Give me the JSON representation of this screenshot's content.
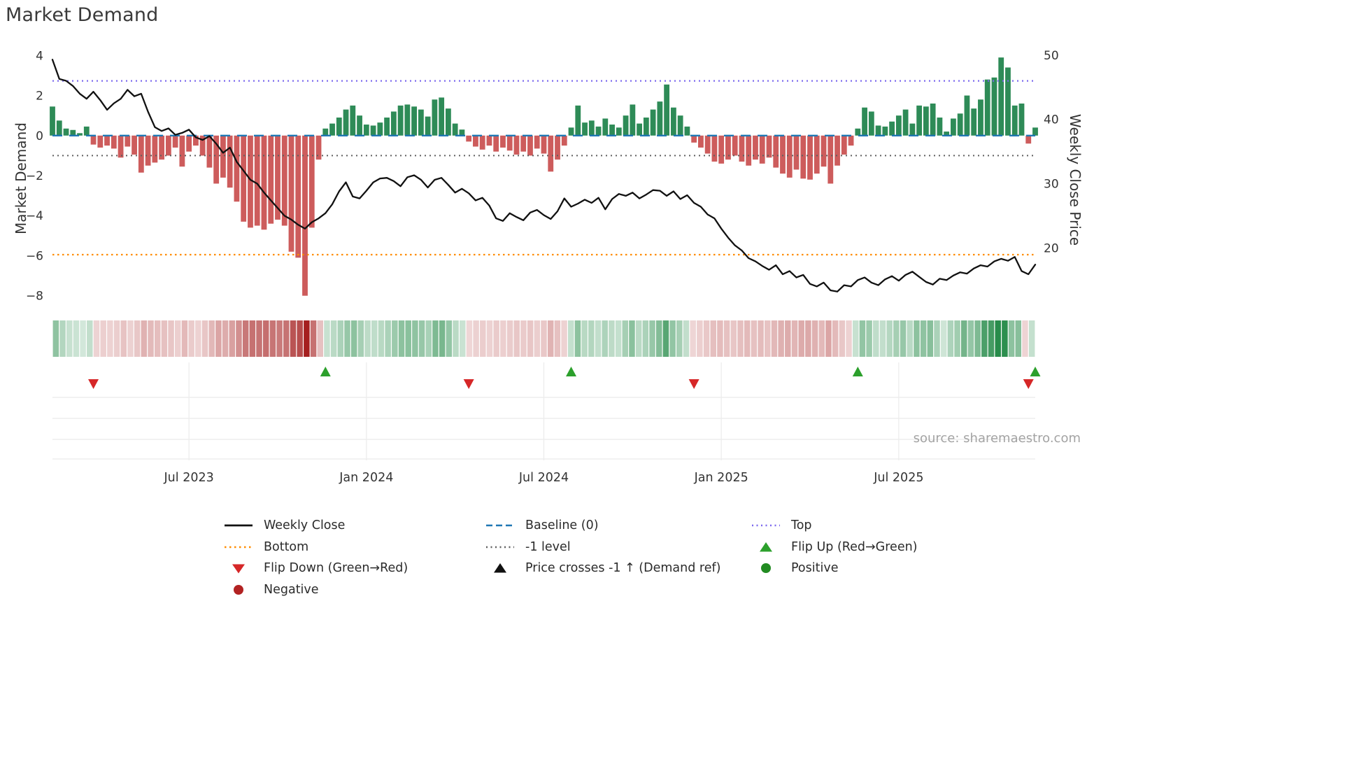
{
  "title": "Market Demand",
  "source": "source: sharemaestro.com",
  "colors": {
    "positive_bar": "#2e8b57",
    "negative_bar": "#cd5c5c",
    "price_line": "#111111",
    "baseline": "#1f77b4",
    "top_line": "#7b68ee",
    "bottom_line": "#ff8c00",
    "minus_one_line": "#5f5f5f",
    "flip_up": "#2ca02c",
    "flip_down": "#d62728",
    "positive_dot": "#228b22",
    "negative_dot": "#b22222",
    "grid": "#ebebeb",
    "tick_text": "#333333"
  },
  "chart_data": {
    "type": "combo",
    "title": "Market Demand",
    "start_date": "2023-02-17",
    "freq_days": 7,
    "x_tick_labels": [
      "Jul 2023",
      "Jan 2024",
      "Jul 2024",
      "Jan 2025",
      "Jul 2025"
    ],
    "x_tick_indices": [
      20,
      46,
      72,
      98,
      124
    ],
    "left_axis": {
      "label": "Market Demand",
      "ticks": [
        4,
        2,
        0,
        -2,
        -4,
        -6,
        -8
      ],
      "range": [
        -8.5,
        4.5
      ]
    },
    "right_axis": {
      "label": "Weekly Close Price",
      "ticks": [
        50,
        40,
        30,
        20
      ],
      "range": [
        11,
        51.5
      ]
    },
    "reference_lines": {
      "baseline": 0,
      "top": 2.73,
      "bottom": -5.95,
      "minus_one": -1
    },
    "flip_up_indices": [
      40,
      76,
      118,
      144
    ],
    "flip_down_indices": [
      6,
      61,
      94,
      143
    ],
    "series": [
      {
        "name": "Market Demand",
        "type": "bar",
        "axis": "left",
        "values": [
          1.45,
          0.75,
          0.35,
          0.28,
          0.12,
          0.45,
          -0.45,
          -0.6,
          -0.5,
          -0.65,
          -1.1,
          -0.55,
          -0.95,
          -1.85,
          -1.5,
          -1.35,
          -1.2,
          -1.0,
          -0.6,
          -1.55,
          -0.8,
          -0.5,
          -1.0,
          -1.6,
          -2.4,
          -2.1,
          -2.6,
          -3.3,
          -4.3,
          -4.6,
          -4.5,
          -4.7,
          -4.4,
          -4.2,
          -4.5,
          -5.8,
          -6.1,
          -8.0,
          -4.6,
          -1.2,
          0.35,
          0.6,
          0.9,
          1.3,
          1.5,
          1.0,
          0.55,
          0.5,
          0.65,
          0.9,
          1.2,
          1.5,
          1.55,
          1.45,
          1.3,
          0.95,
          1.8,
          1.9,
          1.35,
          0.6,
          0.3,
          -0.3,
          -0.55,
          -0.7,
          -0.5,
          -0.8,
          -0.6,
          -0.75,
          -0.95,
          -0.8,
          -1.0,
          -0.65,
          -0.9,
          -1.8,
          -1.2,
          -0.5,
          0.4,
          1.5,
          0.65,
          0.75,
          0.45,
          0.85,
          0.55,
          0.4,
          1.0,
          1.55,
          0.6,
          0.9,
          1.3,
          1.7,
          2.55,
          1.4,
          1.0,
          0.45,
          -0.35,
          -0.6,
          -0.9,
          -1.3,
          -1.4,
          -1.2,
          -1.0,
          -1.3,
          -1.5,
          -1.2,
          -1.4,
          -1.1,
          -1.6,
          -1.9,
          -2.1,
          -1.7,
          -2.15,
          -2.2,
          -1.9,
          -1.55,
          -2.4,
          -1.5,
          -0.95,
          -0.5,
          0.35,
          1.4,
          1.2,
          0.5,
          0.45,
          0.7,
          1.0,
          1.3,
          0.6,
          1.5,
          1.45,
          1.6,
          0.9,
          0.2,
          0.85,
          1.1,
          2.0,
          1.35,
          1.8,
          2.8,
          2.9,
          3.9,
          3.4,
          1.5,
          1.6,
          -0.4,
          0.4
        ]
      },
      {
        "name": "Weekly Close",
        "type": "line",
        "axis": "right",
        "values": [
          49.3,
          46.3,
          46.0,
          45.2,
          44.0,
          43.2,
          44.3,
          43.0,
          41.5,
          42.5,
          43.2,
          44.6,
          43.6,
          44.0,
          41.2,
          38.8,
          38.2,
          38.6,
          37.6,
          37.9,
          38.4,
          37.2,
          36.8,
          37.4,
          36.2,
          34.8,
          35.6,
          33.4,
          32.0,
          30.6,
          30.0,
          28.6,
          27.4,
          26.2,
          25.0,
          24.4,
          23.6,
          23.0,
          24.0,
          24.6,
          25.4,
          26.8,
          28.8,
          30.2,
          28.0,
          27.7,
          28.9,
          30.2,
          30.8,
          30.9,
          30.4,
          29.6,
          31.0,
          31.3,
          30.6,
          29.4,
          30.6,
          30.9,
          29.8,
          28.6,
          29.2,
          28.5,
          27.4,
          27.8,
          26.6,
          24.6,
          24.2,
          25.4,
          24.8,
          24.3,
          25.5,
          25.9,
          25.1,
          24.5,
          25.7,
          27.7,
          26.4,
          26.9,
          27.5,
          27.0,
          27.8,
          26.0,
          27.6,
          28.4,
          28.1,
          28.6,
          27.7,
          28.3,
          29.0,
          28.9,
          28.1,
          28.8,
          27.6,
          28.2,
          27.0,
          26.4,
          25.2,
          24.6,
          23.0,
          21.6,
          20.4,
          19.6,
          18.4,
          17.9,
          17.2,
          16.6,
          17.3,
          15.9,
          16.4,
          15.4,
          15.8,
          14.4,
          14.0,
          14.6,
          13.4,
          13.2,
          14.2,
          14.0,
          15.0,
          15.4,
          14.6,
          14.2,
          15.1,
          15.6,
          14.9,
          15.8,
          16.3,
          15.5,
          14.7,
          14.3,
          15.2,
          15.0,
          15.7,
          16.2,
          16.0,
          16.8,
          17.3,
          17.1,
          17.9,
          18.3,
          18.0,
          18.6,
          16.4,
          15.9,
          17.4
        ]
      }
    ]
  },
  "legend": {
    "columns": [
      {
        "items": [
          {
            "label": "Weekly Close",
            "marker": "line-black"
          },
          {
            "label": "Bottom",
            "marker": "dotted-orange"
          },
          {
            "label": "Flip Down (Green→Red)",
            "marker": "tri-down-red"
          },
          {
            "label": "Negative",
            "marker": "circle-darkred"
          }
        ]
      },
      {
        "items": [
          {
            "label": "Baseline (0)",
            "marker": "dash-blue"
          },
          {
            "label": "-1 level",
            "marker": "dotted-gray"
          },
          {
            "label": "Price crosses -1 ↑ (Demand ref)",
            "marker": "tri-up-black"
          }
        ]
      },
      {
        "items": [
          {
            "label": "Top",
            "marker": "dotted-purple"
          },
          {
            "label": "Flip Up (Red→Green)",
            "marker": "tri-up-green"
          },
          {
            "label": "Positive",
            "marker": "circle-green"
          }
        ]
      }
    ]
  }
}
